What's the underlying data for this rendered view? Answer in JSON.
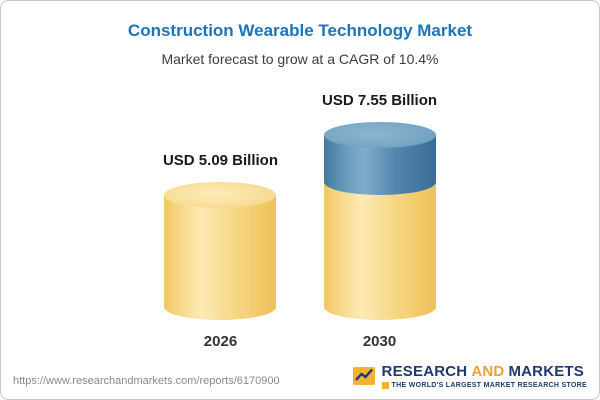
{
  "header": {
    "title": "Construction Wearable Technology Market",
    "subtitle": "Market forecast to grow at a CAGR of 10.4%"
  },
  "chart_data": {
    "type": "bar",
    "variant": "3d-cylinder",
    "categories": [
      "2026",
      "2030"
    ],
    "values": [
      5.09,
      7.55
    ],
    "unit": "USD Billion",
    "bar_labels": [
      "USD 5.09 Billion",
      "USD 7.55 Billion"
    ],
    "title": "Construction Wearable Technology Market",
    "subtitle": "Market forecast to grow at a CAGR of 10.4%",
    "cagr_percent": 10.4,
    "colors": {
      "base": "#F6CF72",
      "growth": "#4D82A8"
    },
    "legend": "none",
    "grid": false
  },
  "footer": {
    "url": "https://www.researchandmarkets.com/reports/6170900",
    "logo": {
      "research": "RESEARCH",
      "and": "AND",
      "markets": "MARKETS",
      "tagline": "THE WORLD'S LARGEST MARKET RESEARCH STORE"
    }
  }
}
